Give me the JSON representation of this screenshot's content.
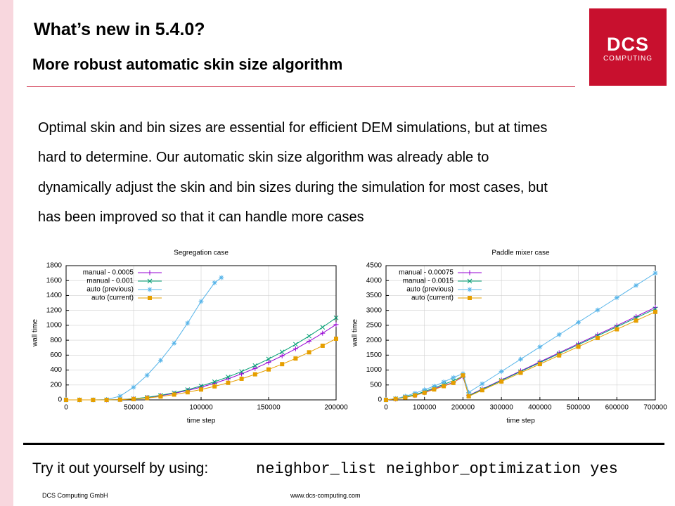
{
  "header": {
    "title": "What’s new in 5.4.0?",
    "subtitle": "More robust automatic skin size algorithm"
  },
  "logo": {
    "name": "DCS",
    "tagline": "COMPUTING"
  },
  "body": {
    "lines": [
      "Optimal skin and bin sizes are essential for efficient DEM simulations, but at times",
      "hard to determine. Our automatic skin size algorithm was already able to",
      "dynamically adjust the skin and bin sizes during the simulation for most cases, but",
      "has been improved so that it can handle more cases"
    ]
  },
  "chart_data": [
    {
      "type": "line",
      "title": "Segregation case",
      "xlabel": "time step",
      "ylabel": "wall time",
      "xlim": [
        0,
        200000
      ],
      "ylim": [
        0,
        1800
      ],
      "xticks": [
        0,
        50000,
        100000,
        150000,
        200000
      ],
      "yticks": [
        0,
        200,
        400,
        600,
        800,
        1000,
        1200,
        1400,
        1600,
        1800
      ],
      "grid": true,
      "legend": "top-left",
      "x": [
        0,
        10000,
        20000,
        30000,
        40000,
        50000,
        60000,
        70000,
        80000,
        90000,
        100000,
        110000,
        120000,
        130000,
        140000,
        150000,
        160000,
        170000,
        180000,
        190000,
        200000
      ],
      "series": [
        {
          "name": "manual - 0.0005",
          "color": "#9400d3",
          "marker": "plus",
          "values": [
            0,
            0,
            0,
            0,
            4,
            14,
            31,
            56,
            87,
            126,
            171,
            223,
            283,
            349,
            422,
            503,
            590,
            684,
            786,
            894,
            1010
          ]
        },
        {
          "name": "manual - 0.001",
          "color": "#009e73",
          "marker": "cross",
          "values": [
            0,
            0,
            0,
            0,
            4,
            15,
            34,
            61,
            95,
            137,
            186,
            243,
            308,
            380,
            460,
            548,
            643,
            745,
            856,
            974,
            1100
          ]
        },
        {
          "name": "auto (previous)",
          "color": "#56b4e9",
          "marker": "star",
          "x": [
            0,
            10000,
            20000,
            30000,
            40000,
            50000,
            60000,
            70000,
            80000,
            90000,
            100000,
            110000,
            115000
          ],
          "values": [
            0,
            0,
            0,
            5,
            50,
            170,
            330,
            530,
            760,
            1030,
            1320,
            1570,
            1640
          ]
        },
        {
          "name": "auto (current)",
          "color": "#e69f00",
          "marker": "square",
          "values": [
            0,
            0,
            0,
            0,
            3,
            11,
            25,
            45,
            71,
            102,
            139,
            181,
            229,
            283,
            343,
            408,
            479,
            555,
            638,
            726,
            820
          ]
        }
      ]
    },
    {
      "type": "line",
      "title": "Paddle mixer case",
      "xlabel": "time step",
      "ylabel": "wall time",
      "xlim": [
        0,
        700000
      ],
      "ylim": [
        0,
        4500
      ],
      "xticks": [
        0,
        100000,
        200000,
        300000,
        400000,
        500000,
        600000,
        700000
      ],
      "yticks": [
        0,
        500,
        1000,
        1500,
        2000,
        2500,
        3000,
        3500,
        4000,
        4500
      ],
      "grid": true,
      "legend": "top-left",
      "x": [
        0,
        25000,
        50000,
        75000,
        100000,
        125000,
        150000,
        175000,
        200000,
        215000,
        250000,
        300000,
        350000,
        400000,
        450000,
        500000,
        550000,
        600000,
        650000,
        700000
      ],
      "series": [
        {
          "name": "manual - 0.00075",
          "color": "#9400d3",
          "marker": "plus",
          "values": [
            0,
            30,
            90,
            150,
            250,
            370,
            480,
            580,
            780,
            150,
            363,
            667,
            971,
            1275,
            1579,
            1883,
            2187,
            2491,
            2795,
            3100
          ]
        },
        {
          "name": "manual - 0.0015",
          "color": "#009e73",
          "marker": "cross",
          "values": [
            0,
            40,
            100,
            170,
            280,
            400,
            520,
            640,
            800,
            140,
            350,
            650,
            950,
            1250,
            1550,
            1850,
            2150,
            2450,
            2750,
            3050
          ]
        },
        {
          "name": "auto (previous)",
          "color": "#56b4e9",
          "marker": "star",
          "values": [
            0,
            40,
            120,
            220,
            340,
            460,
            600,
            750,
            880,
            250,
            539,
            951,
            1364,
            1776,
            2188,
            2601,
            3013,
            3425,
            3838,
            4250
          ]
        },
        {
          "name": "auto (current)",
          "color": "#e69f00",
          "marker": "square",
          "values": [
            0,
            30,
            80,
            150,
            240,
            350,
            460,
            570,
            820,
            120,
            324,
            616,
            908,
            1199,
            1491,
            1783,
            2075,
            2367,
            2658,
            2950
          ]
        }
      ]
    }
  ],
  "cta": {
    "label": "Try it out yourself by using:",
    "code": "neighbor_list neighbor_optimization yes"
  },
  "footer": {
    "company": "DCS Computing GmbH",
    "url": "www.dcs-computing.com"
  }
}
